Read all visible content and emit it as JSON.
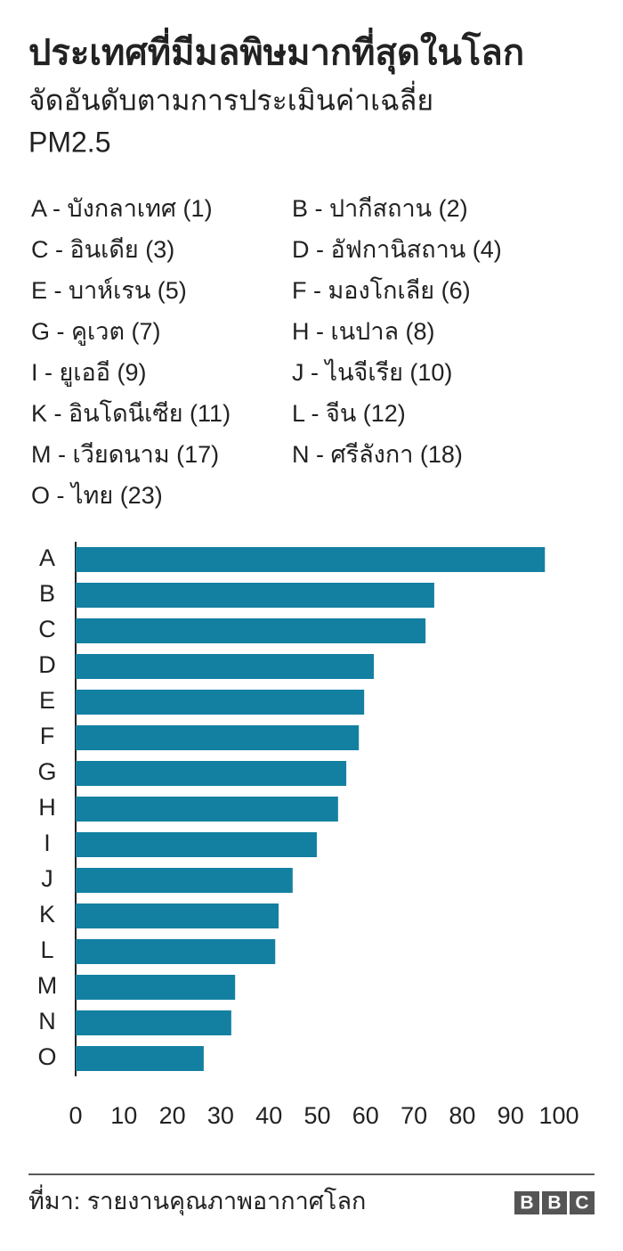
{
  "chart_data": {
    "type": "barh",
    "title": "ประเทศที่มีมลพิษมากที่สุดในโลก",
    "subtitle": [
      "จัดอันดับตามการประเมินค่าเฉลี่ย",
      "PM2.5"
    ],
    "key": [
      "A - บังกลาเทศ (1)",
      "B - ปากีสถาน (2)",
      "C - อินเดีย (3)",
      "D - อัฟกานิสถาน (4)",
      "E - บาห์เรน (5)",
      "F - มองโกเลีย (6)",
      "G - คูเวต (7)",
      "H - เนปาล (8)",
      "I - ยูเออี (9)",
      "J - ไนจีเรีย (10)",
      "K - อินโดนีเซีย (11)",
      "L - จีน (12)",
      "M - เวียดนาม (17)",
      "N - ศรีลังกา (18)",
      "O - ไทย (23)"
    ],
    "categories": [
      "A",
      "B",
      "C",
      "D",
      "E",
      "F",
      "G",
      "H",
      "I",
      "J",
      "K",
      "L",
      "M",
      "N",
      "O"
    ],
    "values": [
      97.1,
      74.2,
      72.4,
      61.7,
      59.7,
      58.6,
      56.0,
      54.3,
      49.9,
      44.9,
      42.0,
      41.3,
      33.0,
      32.2,
      26.5
    ],
    "color": "#1380a1",
    "xlim": [
      0,
      100
    ],
    "xticks": [
      0,
      10,
      20,
      30,
      40,
      50,
      60,
      70,
      80,
      90,
      100
    ],
    "grid": false,
    "source": "ที่มา: รายงานคุณภาพอากาศโลก",
    "logo": [
      "B",
      "B",
      "C"
    ]
  }
}
